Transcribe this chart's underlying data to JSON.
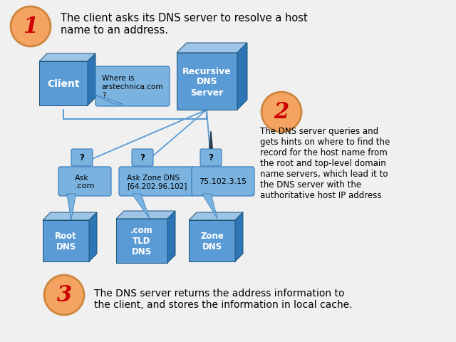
{
  "bg_color": "#f0f0f0",
  "box_face_color": "#5b9bd5",
  "box_top_color": "#9dc3e6",
  "box_side_color": "#2e75b6",
  "arrow_color": "#5b9bd5",
  "circle_face_color": "#f4a460",
  "circle_edge_color": "#cd853f",
  "num_color": "#cc0000",
  "bubble_bg": "#7ab3e0",
  "step1_text": "The client asks its DNS server to resolve a host\nname to an address.",
  "step2_text": "The DNS server queries and\ngets hints on where to find the\nrecord for the host name from\nthe root and top-level domain\nname servers, which lead it to\nthe DNS server with the\nauthoritative host IP address",
  "step3_text": "The DNS server returns the address information to\nthe client, and stores the information in local cache.",
  "bubble_text": "Where is\narstechnica.com\n?",
  "client_label": "Client",
  "recursive_label": "Recursive\nDNS\nServer",
  "root_dns_label": "Root\nDNS",
  "com_tld_label": ".com\nTLD\nDNS",
  "zone_dns_label": "Zone\nDNS",
  "ask_com_label": "Ask\n.com",
  "ask_zone_label": "Ask Zone DNS\n[64.202.96.102]",
  "ip_label": "75.102.3.15",
  "q_mark": "?"
}
